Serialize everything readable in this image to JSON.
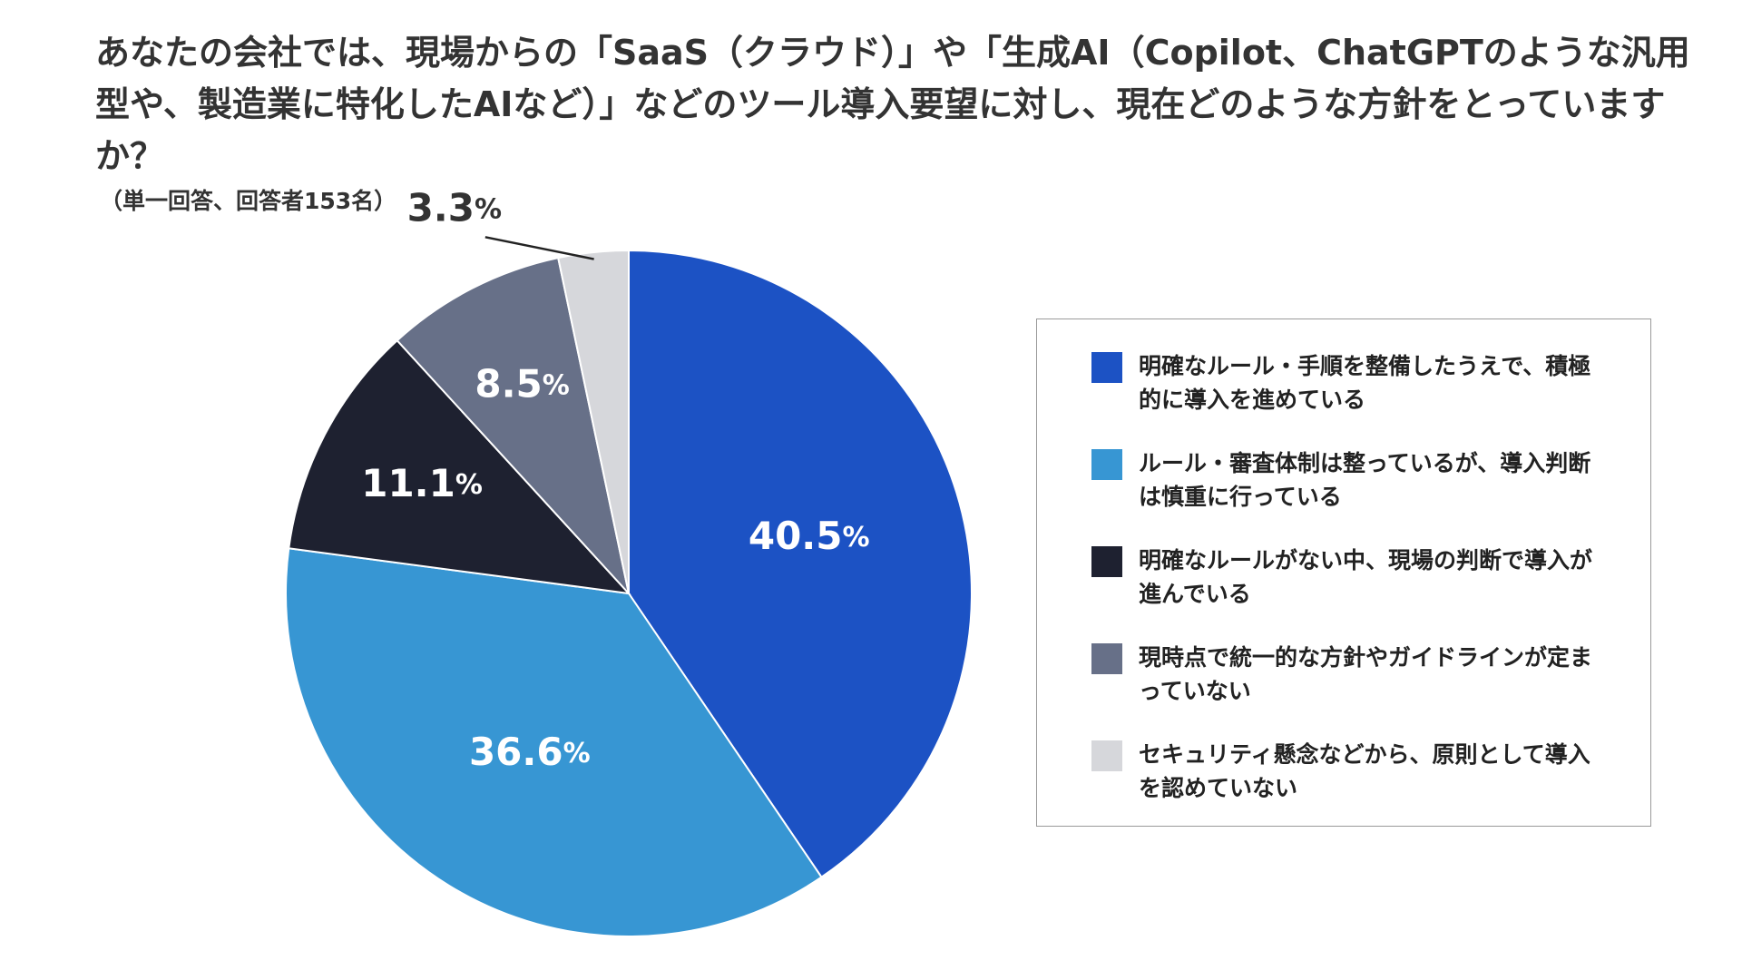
{
  "title": "あなたの会社では、現場からの「SaaS（クラウド）」や「生成AI（Copilot、ChatGPTのような汎用型や、製造業に特化したAIなど）」などのツール導入要望に対し、現在どのような方針をとっていますか？",
  "subtitle": "（単一回答、回答者153名）",
  "chart_data": {
    "type": "pie",
    "title": "あなたの会社では、現場からの「SaaS（クラウド）」や「生成AI（Copilot、ChatGPTのような汎用型や、製造業に特化したAIなど）」などのツール導入要望に対し、現在どのような方針をとっていますか？",
    "subtitle": "（単一回答、回答者153名）",
    "unit": "%",
    "start": "12 o'clock, clockwise",
    "legend_position": "right",
    "slices": [
      {
        "label": "明確なルール・手順を整備したうえで、積極的に導入を進めている",
        "value": 40.5,
        "display": "40.5",
        "color": "#1c52c4"
      },
      {
        "label": "ルール・審査体制は整っているが、導入判断は慎重に行っている",
        "value": 36.6,
        "display": "36.6",
        "color": "#3796d3"
      },
      {
        "label": "明確なルールがない中、現場の判断で導入が進んでいる",
        "value": 11.1,
        "display": "11.1",
        "color": "#1e2130"
      },
      {
        "label": "現時点で統一的な方針やガイドラインが定まっていない",
        "value": 8.5,
        "display": "8.5",
        "color": "#677088"
      },
      {
        "label": "セキュリティ懸念などから、原則として導入を認めていない",
        "value": 3.3,
        "display": "3.3",
        "color": "#d6d7db"
      }
    ]
  }
}
